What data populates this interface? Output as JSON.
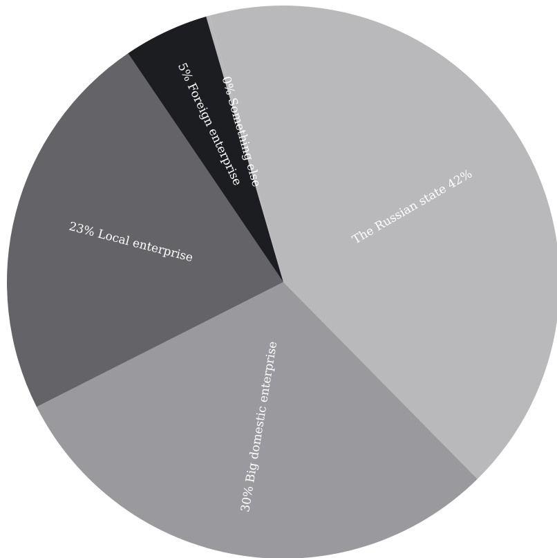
{
  "chart_data": {
    "type": "pie",
    "start_angle_deg": -15.5,
    "direction": "clockwise",
    "slices": [
      {
        "label": "The Russian state",
        "pct_label": "42%",
        "value": 42,
        "color": "#b9b9bc",
        "text_color": "#ffffff"
      },
      {
        "label": "Big domestic enterprise",
        "pct_label": "30%",
        "value": 30,
        "color": "#9a999d",
        "text_color": "#ffffff"
      },
      {
        "label": "Local enterprise",
        "pct_label": "23%",
        "value": 23,
        "color": "#646367",
        "text_color": "#ffffff"
      },
      {
        "label": "Foreign enterprise",
        "pct_label": "5%",
        "value": 5,
        "color": "#1c1d20",
        "text_color": "#ffffff"
      },
      {
        "label": "Something else",
        "pct_label": "0%",
        "value": 0.2,
        "color": "#b9b9bc",
        "text_color": "#1c1d20"
      }
    ]
  }
}
